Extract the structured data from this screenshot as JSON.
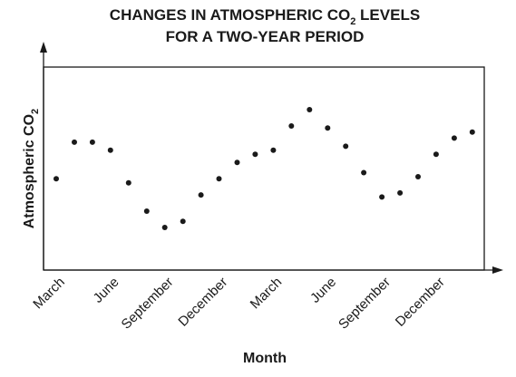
{
  "chart_data": {
    "type": "scatter",
    "title_line1_prefix": "CHANGES IN ATMOSPHERIC CO",
    "title_subscript": "2",
    "title_line1_suffix": " LEVELS",
    "title_line2": "FOR A TWO-YEAR PERIOD",
    "xlabel": "Month",
    "ylabel_prefix": "Atmospheric CO",
    "ylabel_subscript": "2",
    "x_tick_labels": [
      {
        "label": "March",
        "index": 0
      },
      {
        "label": "June",
        "index": 3
      },
      {
        "label": "September",
        "index": 6
      },
      {
        "label": "December",
        "index": 9
      },
      {
        "label": "March",
        "index": 12
      },
      {
        "label": "June",
        "index": 15
      },
      {
        "label": "September",
        "index": 18
      },
      {
        "label": "December",
        "index": 21
      }
    ],
    "x_index_range": [
      0,
      23
    ],
    "ylim": [
      0,
      100
    ],
    "grid": false,
    "points": [
      {
        "index": 0,
        "value": 45
      },
      {
        "index": 1,
        "value": 63
      },
      {
        "index": 2,
        "value": 63
      },
      {
        "index": 3,
        "value": 59
      },
      {
        "index": 4,
        "value": 43
      },
      {
        "index": 5,
        "value": 29
      },
      {
        "index": 6,
        "value": 21
      },
      {
        "index": 7,
        "value": 24
      },
      {
        "index": 8,
        "value": 37
      },
      {
        "index": 9,
        "value": 45
      },
      {
        "index": 10,
        "value": 53
      },
      {
        "index": 11,
        "value": 57
      },
      {
        "index": 12,
        "value": 59
      },
      {
        "index": 13,
        "value": 71
      },
      {
        "index": 14,
        "value": 79
      },
      {
        "index": 15,
        "value": 70
      },
      {
        "index": 16,
        "value": 61
      },
      {
        "index": 17,
        "value": 48
      },
      {
        "index": 18,
        "value": 36
      },
      {
        "index": 19,
        "value": 38
      },
      {
        "index": 20,
        "value": 46
      },
      {
        "index": 21,
        "value": 57
      },
      {
        "index": 22,
        "value": 65
      },
      {
        "index": 23,
        "value": 68
      }
    ]
  }
}
